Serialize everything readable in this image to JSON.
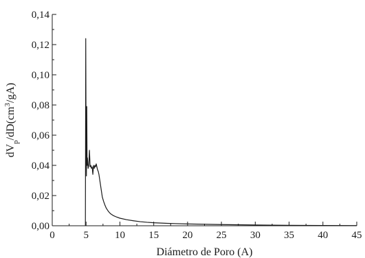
{
  "chart_data": {
    "type": "line",
    "xlabel": "Diámetro de Poro (A)",
    "ylabel": {
      "parts": [
        {
          "text": "dV",
          "shift": "none"
        },
        {
          "text": "p",
          "shift": "sub"
        },
        {
          "text": "/dD(cm",
          "shift": "none"
        },
        {
          "text": "3",
          "shift": "super"
        },
        {
          "text": "/gA)",
          "shift": "none"
        }
      ]
    },
    "xlim": [
      0,
      45
    ],
    "ylim": [
      0,
      0.14
    ],
    "xticks": [
      {
        "value": 0,
        "label": "0"
      },
      {
        "value": 5,
        "label": "5"
      },
      {
        "value": 10,
        "label": "10"
      },
      {
        "value": 15,
        "label": "15"
      },
      {
        "value": 20,
        "label": "20"
      },
      {
        "value": 25,
        "label": "25"
      },
      {
        "value": 30,
        "label": "30"
      },
      {
        "value": 35,
        "label": "35"
      },
      {
        "value": 40,
        "label": "40"
      },
      {
        "value": 45,
        "label": "45"
      }
    ],
    "yticks": [
      {
        "value": 0,
        "label": "0,00"
      },
      {
        "value": 0.02,
        "label": "0,02"
      },
      {
        "value": 0.04,
        "label": "0,04"
      },
      {
        "value": 0.06,
        "label": "0,06"
      },
      {
        "value": 0.08,
        "label": "0,08"
      },
      {
        "value": 0.1,
        "label": "0,10"
      },
      {
        "value": 0.12,
        "label": "0,12"
      },
      {
        "value": 0.14,
        "label": "0,14"
      }
    ],
    "grid": false,
    "series": [
      {
        "color": "#1a1a1a",
        "x": [
          4.9,
          4.95,
          5.0,
          5.05,
          5.1,
          5.15,
          5.2,
          5.3,
          5.4,
          5.5,
          5.6,
          5.7,
          5.8,
          5.9,
          6.0,
          6.1,
          6.2,
          6.3,
          6.4,
          6.5,
          6.6,
          6.7,
          6.8,
          6.9,
          7.0,
          7.1,
          7.2,
          7.3,
          7.4,
          7.6,
          7.8,
          8.0,
          8.3,
          8.6,
          9.0,
          9.5,
          10.0,
          11.0,
          12.0,
          13.0,
          14.0,
          15.0,
          17.0,
          20.0,
          25.0,
          30.0,
          35.0,
          40.0,
          45.0
        ],
        "y": [
          0.0,
          0.124,
          0.055,
          0.033,
          0.079,
          0.04,
          0.045,
          0.038,
          0.04,
          0.05,
          0.039,
          0.04,
          0.038,
          0.039,
          0.034,
          0.04,
          0.038,
          0.04,
          0.039,
          0.041,
          0.039,
          0.037,
          0.036,
          0.034,
          0.031,
          0.028,
          0.025,
          0.022,
          0.019,
          0.016,
          0.0135,
          0.0115,
          0.0095,
          0.008,
          0.0068,
          0.0058,
          0.005,
          0.004,
          0.0033,
          0.0027,
          0.0023,
          0.002,
          0.0016,
          0.0012,
          0.0008,
          0.0005,
          0.0003,
          0.0002,
          0.0001
        ]
      }
    ]
  }
}
